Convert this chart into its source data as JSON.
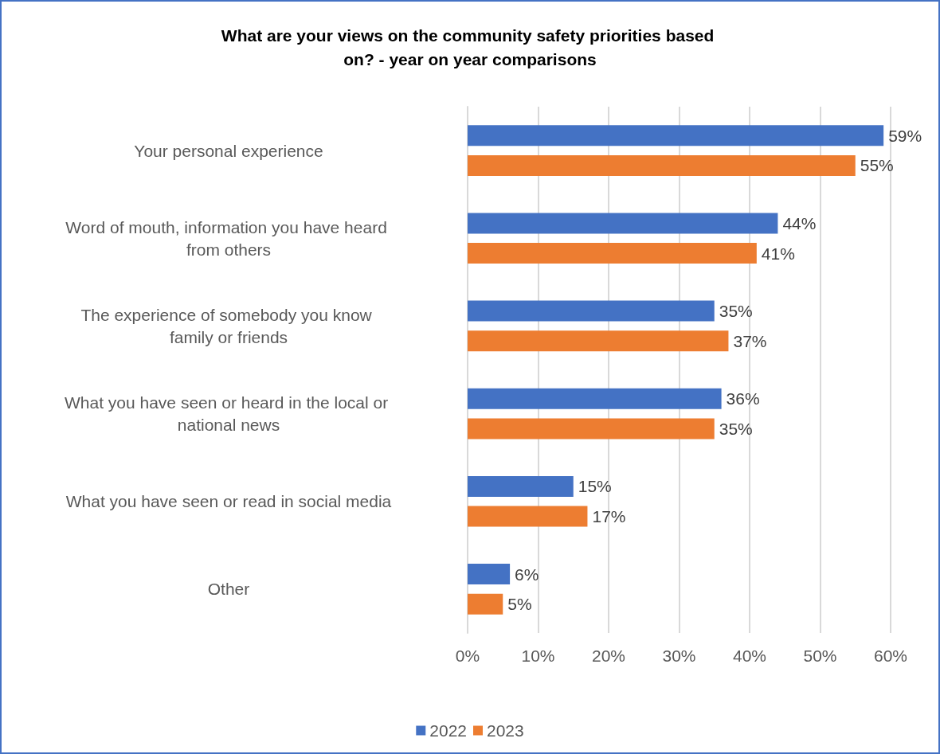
{
  "chart_data": {
    "type": "bar",
    "orientation": "horizontal",
    "title": "What are your views on the community safety priorities based on? - year on year comparisons",
    "categories": [
      "Your personal experience",
      "Word of mouth, information you have heard from others",
      "The experience of somebody you know family or friends",
      "What you have seen or heard in the local or national news",
      "What you have seen or read in social media",
      "Other"
    ],
    "series": [
      {
        "name": "2022",
        "color": "#4472c4",
        "values": [
          59,
          44,
          35,
          36,
          15,
          6
        ],
        "value_labels": [
          "59%",
          "44%",
          "35%",
          "36%",
          "15%",
          "6%"
        ]
      },
      {
        "name": "2023",
        "color": "#ed7d31",
        "values": [
          55,
          41,
          37,
          35,
          17,
          5
        ],
        "value_labels": [
          "55%",
          "41%",
          "37%",
          "35%",
          "17%",
          "5%"
        ]
      }
    ],
    "xlim": [
      0,
      60
    ],
    "xticks": [
      {
        "value": 0,
        "label": "0%"
      },
      {
        "value": 10,
        "label": "10%"
      },
      {
        "value": 20,
        "label": "20%"
      },
      {
        "value": 30,
        "label": "30%"
      },
      {
        "value": 40,
        "label": "40%"
      },
      {
        "value": 50,
        "label": "50%"
      },
      {
        "value": 60,
        "label": "60%"
      }
    ],
    "grid": "x",
    "legend": "bottom"
  }
}
